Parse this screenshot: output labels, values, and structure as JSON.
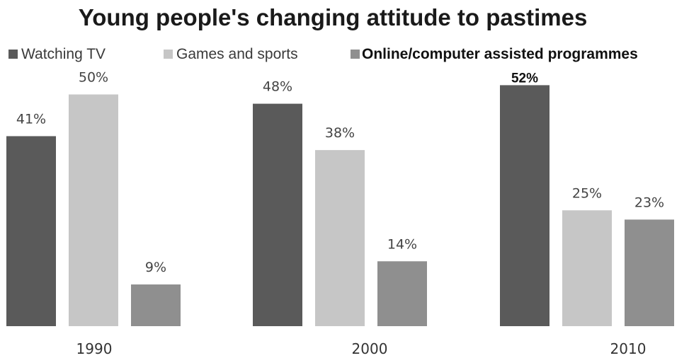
{
  "chart_data": {
    "type": "bar",
    "title": "Young people's changing attitude to pastimes",
    "categories": [
      "1990",
      "2000",
      "2010"
    ],
    "series": [
      {
        "name": "Watching TV",
        "values": [
          41,
          48,
          52
        ],
        "color": "#5a5a5a"
      },
      {
        "name": "Games and sports",
        "values": [
          50,
          38,
          25
        ],
        "color": "#c6c6c6"
      },
      {
        "name": "Online/computer assisted programmes",
        "values": [
          9,
          14,
          23
        ],
        "color": "#8f8f8f"
      }
    ],
    "data_labels": [
      [
        "41%",
        "48%",
        "52%"
      ],
      [
        "50%",
        "38%",
        "25%"
      ],
      [
        "9%",
        "14%",
        "23%"
      ]
    ],
    "legend_position": "top-left",
    "grid": false,
    "ylim": [
      0,
      60
    ]
  }
}
